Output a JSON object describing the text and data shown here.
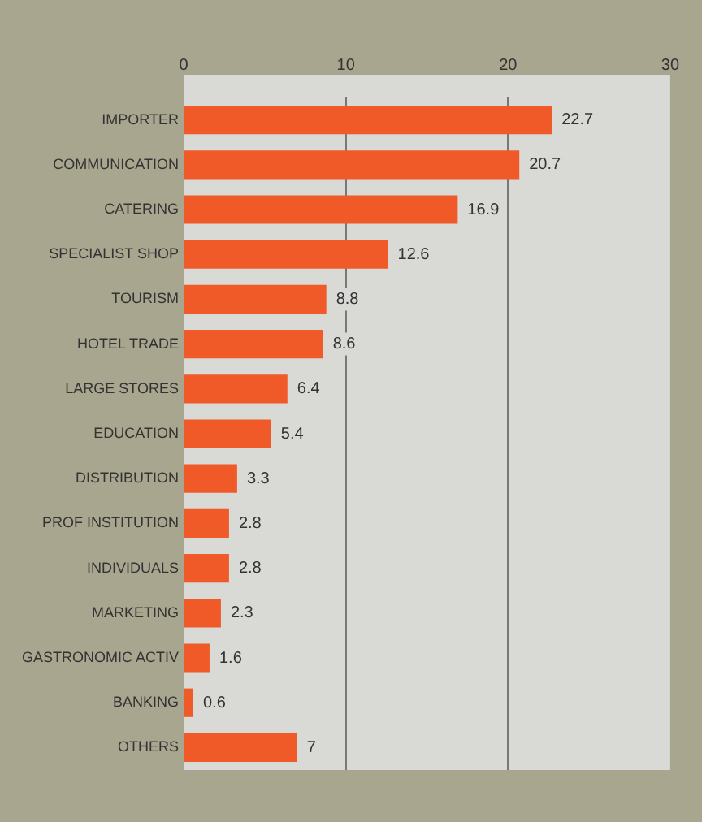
{
  "chart_data": {
    "type": "bar",
    "orientation": "horizontal",
    "categories": [
      "IMPORTER",
      "COMMUNICATION",
      "CATERING",
      "SPECIALIST SHOP",
      "TOURISM",
      "HOTEL TRADE",
      "LARGE STORES",
      "EDUCATION",
      "DISTRIBUTION",
      "PROF INSTITUTION",
      "INDIVIDUALS",
      "MARKETING",
      "GASTRONOMIC ACTIV",
      "BANKING",
      "OTHERS"
    ],
    "values": [
      22.7,
      20.7,
      16.9,
      12.6,
      8.8,
      8.6,
      6.4,
      5.4,
      3.3,
      2.8,
      2.8,
      2.3,
      1.6,
      0.6,
      7
    ],
    "color": "#f05a28",
    "xlim": [
      0,
      30
    ],
    "xticks": [
      0,
      10,
      20,
      30
    ],
    "grid": "x",
    "data_labels": true,
    "legend": false
  }
}
